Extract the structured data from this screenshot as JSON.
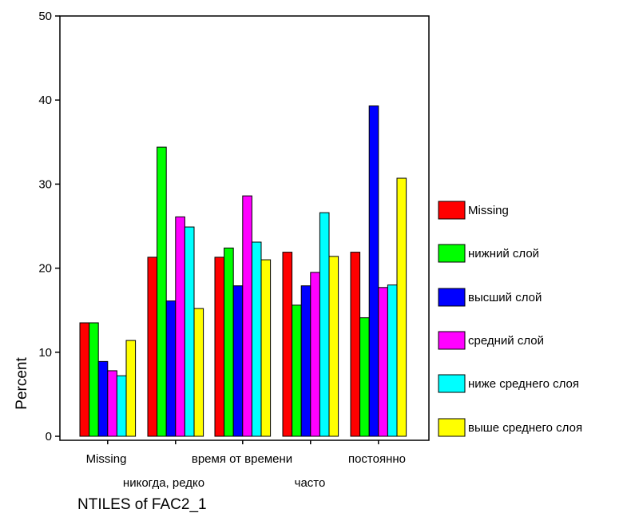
{
  "chart_data": {
    "type": "bar",
    "title": "",
    "xlabel": "NTILES of FAC2_1",
    "ylabel": "Percent",
    "ylim": [
      0,
      50
    ],
    "yticks": [
      0,
      10,
      20,
      30,
      40,
      50
    ],
    "grid": false,
    "legend_position": "right",
    "categories": [
      "Missing",
      "никогда, редко",
      "время от времени",
      "часто",
      "постоянно"
    ],
    "series": [
      {
        "name": "Missing",
        "color": "#ff0000",
        "values": [
          13.5,
          21.3,
          21.3,
          21.9,
          21.9
        ]
      },
      {
        "name": "нижний слой",
        "color": "#00ff00",
        "values": [
          13.5,
          34.4,
          22.4,
          15.6,
          14.1
        ]
      },
      {
        "name": "высший слой",
        "color": "#0000ff",
        "values": [
          8.9,
          16.1,
          17.9,
          17.9,
          39.3
        ]
      },
      {
        "name": "средний слой",
        "color": "#ff00ff",
        "values": [
          7.8,
          26.1,
          28.6,
          19.5,
          17.7
        ]
      },
      {
        "name": "ниже среднего слоя",
        "color": "#00ffff",
        "values": [
          7.2,
          24.9,
          23.1,
          26.6,
          18.0
        ]
      },
      {
        "name": "выше среднего слоя",
        "color": "#ffff00",
        "values": [
          11.4,
          15.2,
          21.0,
          21.4,
          30.7
        ]
      }
    ]
  }
}
